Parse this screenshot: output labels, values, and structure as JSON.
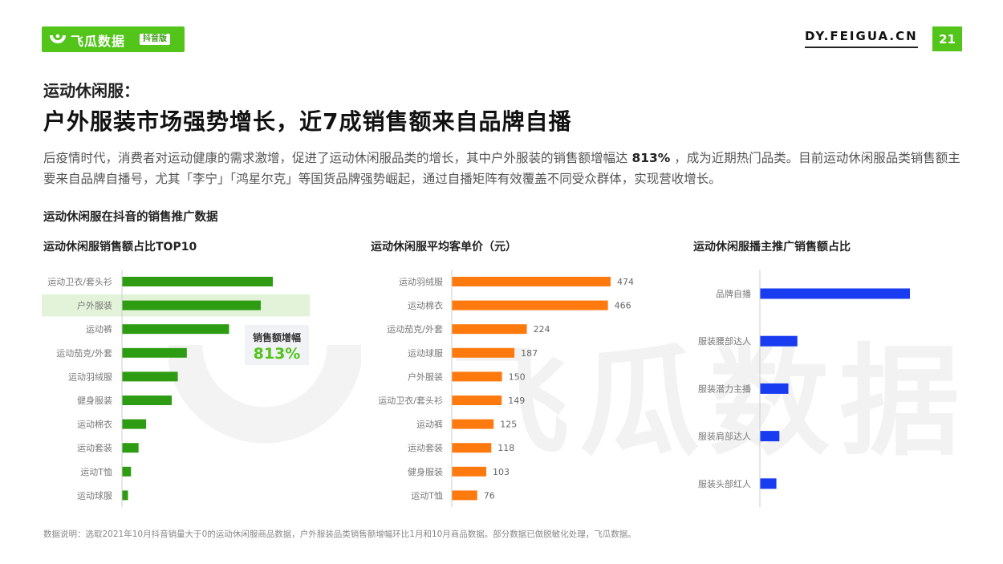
{
  "brand": {
    "logo_text": "飞瓜数据",
    "logo_badge": "抖音版",
    "site_url": "DY.FEIGUA.CN",
    "page_number": "21",
    "green": "#52c41a"
  },
  "header": {
    "subtitle": "运动休闲服：",
    "title": "户外服装市场强势增长，近7成销售额来自品牌自播"
  },
  "description": {
    "part1": "后疫情时代，消费者对运动健康的需求激增，促进了运动休闲服品类的增长，其中户外服装的销售额增幅达 ",
    "highlight": "813%",
    "part2": " ，成为近期热门品类。目前运动休闲服品类销售额主要来自品牌自播号，尤其「李宁」「鸿星尔克」等国货品牌强势崛起，通过自播矩阵有效覆盖不同受众群体，实现营收增长。"
  },
  "section_title": "运动休闲服在抖音的销售推广数据",
  "watermark": "飞瓜数据",
  "callout": {
    "label": "销售额增幅",
    "value": "813%"
  },
  "footnote": "数据说明：选取2021年10月抖音销量大于0的运动休闲服商品数据，户外服装品类销售额增幅环比1月和10月商品数据。部分数据已做脱敏化处理，飞瓜数据。",
  "chart_data": [
    {
      "type": "bar",
      "orientation": "horizontal",
      "title": "运动休闲服销售额占比TOP10",
      "categories": [
        "运动卫衣/套头衫",
        "户外服装",
        "运动裤",
        "运动茄克/外套",
        "运动羽绒服",
        "健身服装",
        "运动棉衣",
        "运动套装",
        "运动T恤",
        "运动球服"
      ],
      "values": [
        100,
        92,
        71,
        43,
        37,
        33,
        16,
        11,
        6,
        4
      ],
      "highlight_category": "户外服装",
      "color": "#2e9c12",
      "show_values": false
    },
    {
      "type": "bar",
      "orientation": "horizontal",
      "title": "运动休闲服平均客单价（元）",
      "categories": [
        "运动羽绒服",
        "运动棉衣",
        "运动茄克/外套",
        "运动球服",
        "户外服装",
        "运动卫衣/套头衫",
        "运动裤",
        "运动套装",
        "健身服装",
        "运动T恤"
      ],
      "values": [
        474,
        466,
        224,
        187,
        150,
        149,
        125,
        118,
        103,
        76
      ],
      "color": "#ff7a0e",
      "show_values": true
    },
    {
      "type": "bar",
      "orientation": "horizontal",
      "title": "运动休闲服播主推广销售额占比",
      "categories": [
        "品牌自播",
        "服装腰部达人",
        "服装潜力主播",
        "服装肩部达人",
        "服装头部红人"
      ],
      "values": [
        100,
        25,
        19,
        13,
        11
      ],
      "color": "#1a3cf0",
      "show_values": false
    }
  ]
}
